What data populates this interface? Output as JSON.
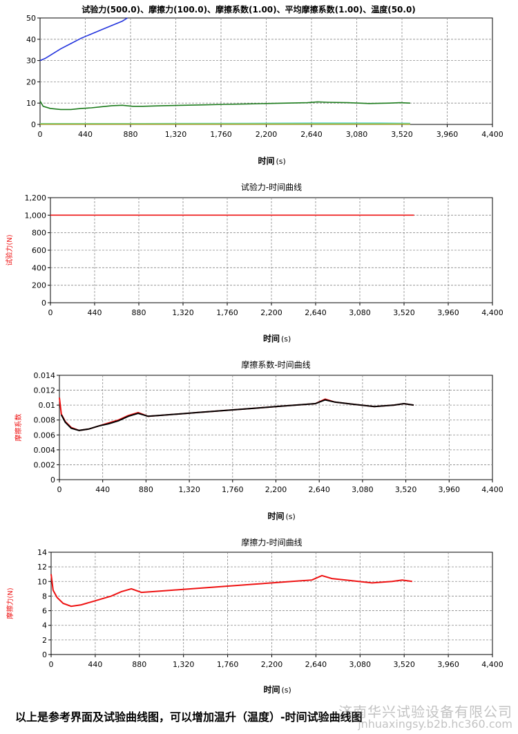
{
  "chart_data": [
    {
      "type": "line",
      "title": "试验力(500.0)、摩擦力(100.0)、摩擦系数(1.00)、平均摩擦系数(1.00)、温度(50.0)",
      "xlabel": "时间",
      "xunit": "(s)",
      "ylabel": "",
      "xlim": [
        0,
        4400
      ],
      "ylim": [
        0,
        50
      ],
      "xticks": [
        "0",
        "440",
        "880",
        "1,320",
        "1,760",
        "2,200",
        "2,640",
        "3,080",
        "3,520",
        "3,960",
        "4,400"
      ],
      "yticks": [
        "0",
        "10",
        "20",
        "30",
        "40",
        "50"
      ],
      "grid": true,
      "series": [
        {
          "color": "#2233dd",
          "x": [
            0,
            50,
            100,
            200,
            300,
            400,
            500,
            600,
            700,
            800,
            850
          ],
          "y": [
            30,
            31,
            32.5,
            35.5,
            38,
            40.5,
            42.5,
            44.5,
            46.5,
            48.5,
            50
          ]
        },
        {
          "color": "#1a7a1a",
          "x": [
            0,
            30,
            100,
            200,
            300,
            400,
            500,
            600,
            700,
            800,
            900,
            1000,
            1200,
            1400,
            1600,
            1800,
            2000,
            2200,
            2400,
            2600,
            2700,
            2800,
            3000,
            3200,
            3400,
            3500,
            3600
          ],
          "y": [
            11,
            8.5,
            7.5,
            7,
            7,
            7.5,
            7.8,
            8.3,
            8.8,
            9,
            8.5,
            8.5,
            8.8,
            9,
            9.2,
            9.4,
            9.6,
            9.8,
            10,
            10.2,
            10.6,
            10.4,
            10.2,
            9.8,
            10,
            10.2,
            10
          ]
        },
        {
          "color": "#33cccc",
          "x": [
            0,
            1000,
            2000,
            2700,
            3000,
            3300,
            3600
          ],
          "y": [
            0.4,
            0.4,
            0.5,
            0.6,
            0.6,
            0.6,
            0.5
          ]
        },
        {
          "color": "#bbbb22",
          "x": [
            0,
            3600
          ],
          "y": [
            0.2,
            0.2
          ]
        }
      ]
    },
    {
      "type": "line",
      "title": "试验力-时间曲线",
      "xlabel": "时间",
      "xunit": "(s)",
      "ylabel": "试验力(N)",
      "xlim": [
        0,
        4400
      ],
      "ylim": [
        0,
        1200
      ],
      "xticks": [
        "0",
        "440",
        "880",
        "1,320",
        "1,760",
        "2,200",
        "2,640",
        "3,080",
        "3,520",
        "3,960",
        "4,400"
      ],
      "yticks": [
        "0",
        "200",
        "400",
        "600",
        "800",
        "1,000",
        "1,200"
      ],
      "grid": true,
      "series": [
        {
          "color": "#ee1111",
          "x": [
            0,
            3620
          ],
          "y": [
            1000,
            1000
          ]
        }
      ]
    },
    {
      "type": "line",
      "title": "摩擦系数-时间曲线",
      "xlabel": "时间",
      "xunit": "(s)",
      "ylabel": "摩擦系数",
      "xlim": [
        0,
        4400
      ],
      "ylim": [
        0,
        0.014
      ],
      "xticks": [
        "0",
        "440",
        "880",
        "1,320",
        "1,760",
        "2,200",
        "2,640",
        "3,080",
        "3,520",
        "3,960",
        "4,400"
      ],
      "yticks": [
        "0",
        "0.002",
        "0.004",
        "0.006",
        "0.008",
        "0.01",
        "0.012",
        "0.014"
      ],
      "grid": true,
      "series": [
        {
          "color": "#ee1111",
          "x": [
            0,
            20,
            60,
            120,
            200,
            300,
            400,
            500,
            600,
            700,
            800,
            900,
            1000,
            1200,
            1400,
            1600,
            1800,
            2000,
            2200,
            2400,
            2600,
            2700,
            2800,
            3000,
            3200,
            3400,
            3500,
            3600
          ],
          "y": [
            0.011,
            0.0088,
            0.0078,
            0.007,
            0.0066,
            0.0068,
            0.0072,
            0.0076,
            0.008,
            0.0086,
            0.009,
            0.0085,
            0.0086,
            0.0088,
            0.009,
            0.0092,
            0.0094,
            0.0096,
            0.0098,
            0.01,
            0.0102,
            0.0108,
            0.0104,
            0.0101,
            0.0098,
            0.01,
            0.0102,
            0.01
          ]
        },
        {
          "color": "#000000",
          "x": [
            20,
            60,
            120,
            200,
            300,
            400,
            500,
            600,
            700,
            800,
            900,
            1000,
            1200,
            1400,
            1600,
            1800,
            2000,
            2200,
            2400,
            2600,
            2700,
            2800,
            3000,
            3200,
            3400,
            3500,
            3600
          ],
          "y": [
            0.0087,
            0.0077,
            0.0069,
            0.0066,
            0.0068,
            0.0072,
            0.0075,
            0.0079,
            0.0085,
            0.0089,
            0.0085,
            0.0086,
            0.0088,
            0.009,
            0.0092,
            0.0094,
            0.0096,
            0.0098,
            0.01,
            0.0102,
            0.0107,
            0.0104,
            0.0101,
            0.0098,
            0.01,
            0.0102,
            0.01
          ]
        }
      ]
    },
    {
      "type": "line",
      "title": "摩擦力-时间曲线",
      "xlabel": "时间",
      "xunit": "(s)",
      "ylabel": "摩擦力(N)",
      "xlim": [
        0,
        4400
      ],
      "ylim": [
        0,
        14
      ],
      "xticks": [
        "0",
        "440",
        "880",
        "1,320",
        "1,760",
        "2,200",
        "2,640",
        "3,080",
        "3,520",
        "3,960",
        "4,400"
      ],
      "yticks": [
        "0",
        "2",
        "4",
        "6",
        "8",
        "10",
        "12",
        "14"
      ],
      "grid": true,
      "series": [
        {
          "color": "#ee1111",
          "x": [
            0,
            20,
            60,
            120,
            200,
            300,
            400,
            500,
            600,
            700,
            800,
            900,
            1000,
            1200,
            1400,
            1600,
            1800,
            2000,
            2200,
            2400,
            2600,
            2700,
            2800,
            3000,
            3200,
            3400,
            3500,
            3600
          ],
          "y": [
            11,
            8.8,
            7.8,
            7.0,
            6.6,
            6.8,
            7.2,
            7.6,
            8.0,
            8.6,
            9.0,
            8.5,
            8.6,
            8.8,
            9.0,
            9.2,
            9.4,
            9.6,
            9.8,
            10.0,
            10.2,
            10.8,
            10.4,
            10.1,
            9.8,
            10.0,
            10.2,
            10.0
          ]
        }
      ]
    }
  ],
  "caption": "以上是参考界面及试验曲线图，可以增加温升（温度）-时间试验曲线图",
  "watermark": {
    "line1": "济南华兴试验设备有限公司",
    "line2": "jnhuaxingsy.b2b.hc360.com"
  }
}
